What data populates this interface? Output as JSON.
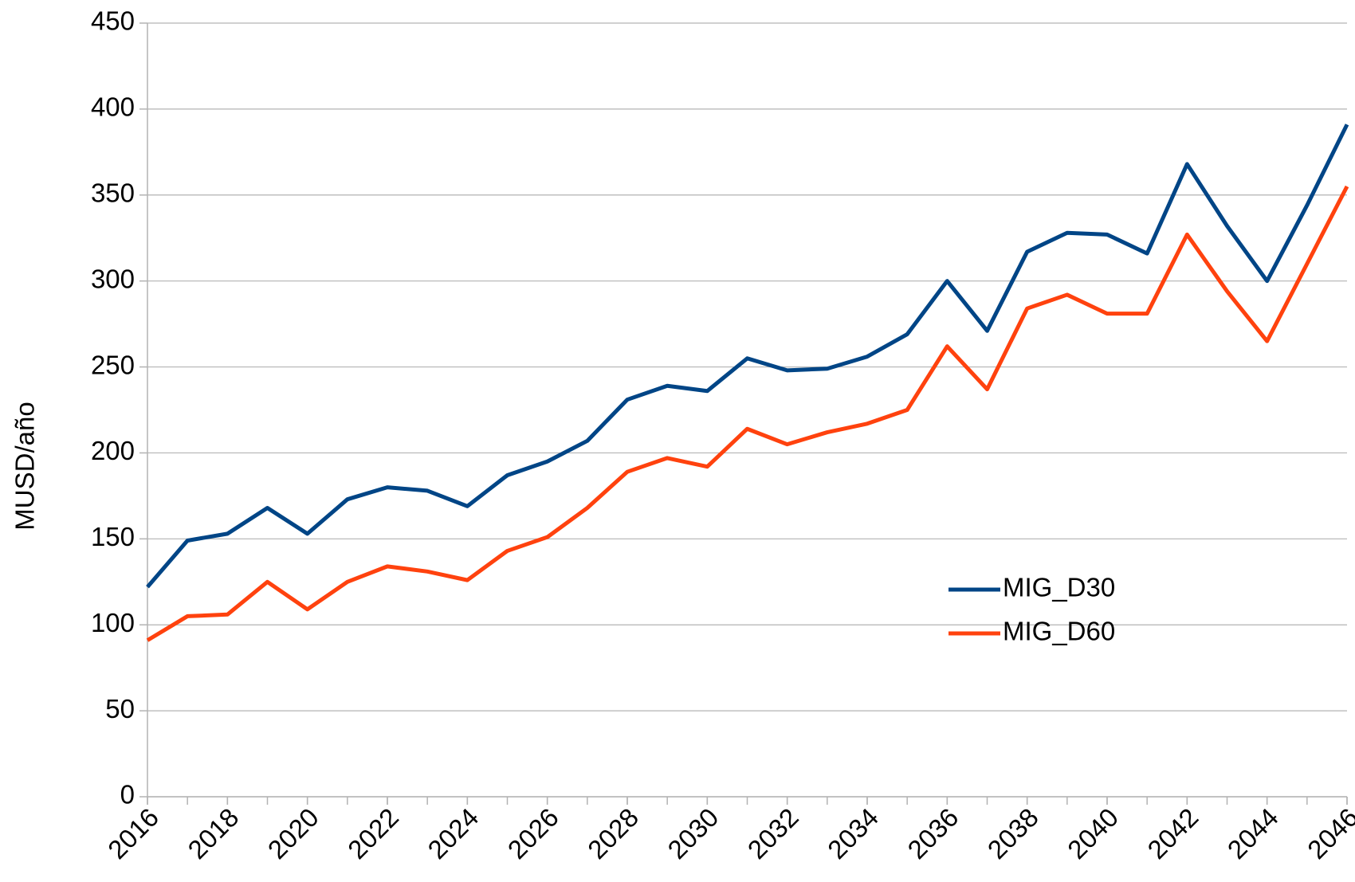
{
  "chart_data": {
    "type": "line",
    "y_label": "MUSD/año",
    "x": [
      2016,
      2017,
      2018,
      2019,
      2020,
      2021,
      2022,
      2023,
      2024,
      2025,
      2026,
      2027,
      2028,
      2029,
      2030,
      2031,
      2032,
      2033,
      2034,
      2035,
      2036,
      2037,
      2038,
      2039,
      2040,
      2041,
      2042,
      2043,
      2044,
      2045,
      2046
    ],
    "series": [
      {
        "name": "MIG_D30",
        "color": "#004586",
        "values": [
          122,
          149,
          153,
          168,
          153,
          173,
          180,
          178,
          169,
          187,
          195,
          207,
          231,
          239,
          236,
          255,
          248,
          249,
          256,
          269,
          300,
          271,
          317,
          328,
          327,
          316,
          368,
          332,
          300,
          344,
          391
        ]
      },
      {
        "name": "MIG_D60",
        "color": "#ff420e",
        "values": [
          91,
          105,
          106,
          125,
          109,
          125,
          134,
          131,
          126,
          143,
          151,
          168,
          189,
          197,
          192,
          214,
          205,
          212,
          217,
          225,
          262,
          237,
          284,
          292,
          281,
          281,
          327,
          294,
          265,
          310,
          355
        ]
      }
    ],
    "xlim": [
      2016,
      2046
    ],
    "xticks": [
      2016,
      2018,
      2020,
      2022,
      2024,
      2026,
      2028,
      2030,
      2032,
      2034,
      2036,
      2038,
      2040,
      2042,
      2044,
      2046
    ],
    "ylim": [
      0,
      450
    ],
    "yticks": [
      0,
      50,
      100,
      150,
      200,
      250,
      300,
      350,
      400,
      450
    ],
    "grid": true,
    "legend": "right"
  }
}
